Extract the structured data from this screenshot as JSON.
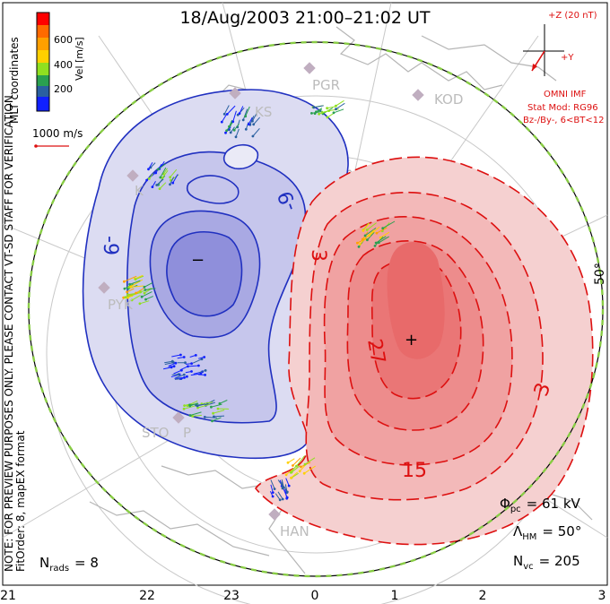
{
  "title": "18/Aug/2003 21:00–21:02 UT",
  "velocity_scale": {
    "label": "Vel [m/s]",
    "ticks": [
      "600",
      "400",
      "200"
    ],
    "colors": [
      "#ff0000",
      "#ff6a00",
      "#ffc000",
      "#a0e000",
      "#20b020",
      "#2a8a9a",
      "#2040c0",
      "#0010ff"
    ],
    "ref_vector_label": "1000 m/s"
  },
  "side_text": {
    "coordinates": "MLT coordinates",
    "preview_notice": "NOTE: FOR PREVIEW PURPOSES ONLY. PLEASE CONTACT VT-SD STAFF FOR VERIFICATION.",
    "fit_info": "FitOrder: 8, mapEX format"
  },
  "imf": {
    "z_label": "+Z (20 nT)",
    "y_label": "+Y",
    "source": "OMNI IMF",
    "model": "Stat Mod: RG96",
    "condition": "Bz-/By-, 6<BT<12"
  },
  "stations": [
    "PGR",
    "KOD",
    "KS",
    "K",
    "P",
    "STO",
    "PYK",
    "HAN"
  ],
  "latitude_label": "50°",
  "contours": {
    "negative_labels": [
      "-9",
      "-9",
      "−"
    ],
    "positive_labels": [
      "3",
      "27",
      "15",
      "3",
      "+"
    ]
  },
  "stats": {
    "phi_pc_label": "Φ",
    "phi_pc_sub": "pc",
    "phi_pc_value": "= 61 kV",
    "lambda_label": "Λ",
    "lambda_sub": "HM",
    "lambda_value": "= 50°",
    "nvc_label": "N",
    "nvc_sub": "vc",
    "nvc_value": "= 205",
    "nrads_label": "N",
    "nrads_sub": "rads",
    "nrads_value": "= 8"
  },
  "mlt_axis": [
    "21",
    "22",
    "23",
    "0",
    "1",
    "2",
    "3"
  ],
  "colors": {
    "negative_potential": "#2030c0",
    "positive_potential": "#dd1010",
    "imf_text": "#dd1010",
    "coast": "#b0b0b0",
    "boundary": "#88cc44"
  }
}
